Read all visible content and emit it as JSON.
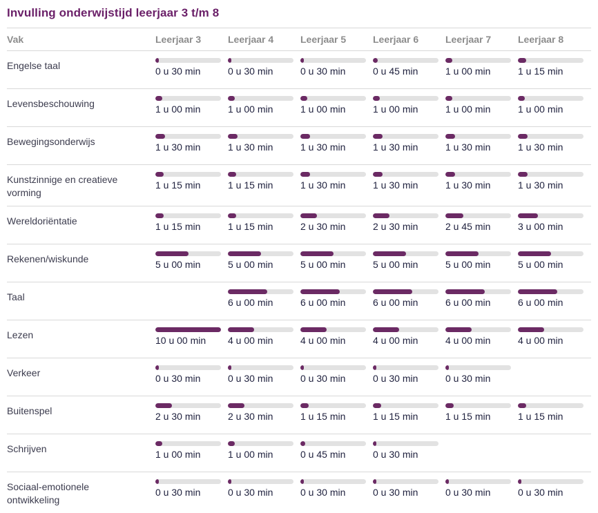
{
  "title": "Invulling onderwijstijd leerjaar 3 t/m 8",
  "colors": {
    "accent": "#6a1f68",
    "bar_fill": "#6b2a64",
    "bar_track": "#e2e2e2",
    "divider": "#d8d8d8",
    "header_text": "#8c8c8c",
    "vak_text": "#3c3c4e",
    "value_text": "#20223f"
  },
  "chart_data": {
    "type": "table",
    "title": "Invulling onderwijstijd leerjaar 3 t/m 8",
    "columns": [
      "Vak",
      "Leerjaar 3",
      "Leerjaar 4",
      "Leerjaar 5",
      "Leerjaar 6",
      "Leerjaar 7",
      "Leerjaar 8"
    ],
    "bar_scale_max_minutes": 600,
    "rows": [
      {
        "vak": "Engelse taal",
        "cells": [
          {
            "minutes": 30,
            "label": "0 u 30 min"
          },
          {
            "minutes": 30,
            "label": "0 u 30 min"
          },
          {
            "minutes": 30,
            "label": "0 u 30 min"
          },
          {
            "minutes": 45,
            "label": "0 u 45 min"
          },
          {
            "minutes": 60,
            "label": "1 u 00 min"
          },
          {
            "minutes": 75,
            "label": "1 u 15 min"
          }
        ]
      },
      {
        "vak": "Levensbeschouwing",
        "cells": [
          {
            "minutes": 60,
            "label": "1 u 00 min"
          },
          {
            "minutes": 60,
            "label": "1 u 00 min"
          },
          {
            "minutes": 60,
            "label": "1 u 00 min"
          },
          {
            "minutes": 60,
            "label": "1 u 00 min"
          },
          {
            "minutes": 60,
            "label": "1 u 00 min"
          },
          {
            "minutes": 60,
            "label": "1 u 00 min"
          }
        ]
      },
      {
        "vak": "Bewegingsonderwijs",
        "cells": [
          {
            "minutes": 90,
            "label": "1 u 30 min"
          },
          {
            "minutes": 90,
            "label": "1 u 30 min"
          },
          {
            "minutes": 90,
            "label": "1 u 30 min"
          },
          {
            "minutes": 90,
            "label": "1 u 30 min"
          },
          {
            "minutes": 90,
            "label": "1 u 30 min"
          },
          {
            "minutes": 90,
            "label": "1 u 30 min"
          }
        ]
      },
      {
        "vak": "Kunstzinnige en creatieve vorming",
        "cells": [
          {
            "minutes": 75,
            "label": "1 u 15 min"
          },
          {
            "minutes": 75,
            "label": "1 u 15 min"
          },
          {
            "minutes": 90,
            "label": "1 u 30 min"
          },
          {
            "minutes": 90,
            "label": "1 u 30 min"
          },
          {
            "minutes": 90,
            "label": "1 u 30 min"
          },
          {
            "minutes": 90,
            "label": "1 u 30 min"
          }
        ]
      },
      {
        "vak": "Wereldoriëntatie",
        "cells": [
          {
            "minutes": 75,
            "label": "1 u 15 min"
          },
          {
            "minutes": 75,
            "label": "1 u 15 min"
          },
          {
            "minutes": 150,
            "label": "2 u 30 min"
          },
          {
            "minutes": 150,
            "label": "2 u 30 min"
          },
          {
            "minutes": 165,
            "label": "2 u 45 min"
          },
          {
            "minutes": 180,
            "label": "3 u 00 min"
          }
        ]
      },
      {
        "vak": "Rekenen/wiskunde",
        "cells": [
          {
            "minutes": 300,
            "label": "5 u 00 min"
          },
          {
            "minutes": 300,
            "label": "5 u 00 min"
          },
          {
            "minutes": 300,
            "label": "5 u 00 min"
          },
          {
            "minutes": 300,
            "label": "5 u 00 min"
          },
          {
            "minutes": 300,
            "label": "5 u 00 min"
          },
          {
            "minutes": 300,
            "label": "5 u 00 min"
          }
        ]
      },
      {
        "vak": "Taal",
        "cells": [
          null,
          {
            "minutes": 360,
            "label": "6 u 00 min"
          },
          {
            "minutes": 360,
            "label": "6 u 00 min"
          },
          {
            "minutes": 360,
            "label": "6 u 00 min"
          },
          {
            "minutes": 360,
            "label": "6 u 00 min"
          },
          {
            "minutes": 360,
            "label": "6 u 00 min"
          }
        ]
      },
      {
        "vak": "Lezen",
        "cells": [
          {
            "minutes": 600,
            "label": "10 u 00 min"
          },
          {
            "minutes": 240,
            "label": "4 u 00 min"
          },
          {
            "minutes": 240,
            "label": "4 u 00 min"
          },
          {
            "minutes": 240,
            "label": "4 u 00 min"
          },
          {
            "minutes": 240,
            "label": "4 u 00 min"
          },
          {
            "minutes": 240,
            "label": "4 u 00 min"
          }
        ]
      },
      {
        "vak": "Verkeer",
        "cells": [
          {
            "minutes": 30,
            "label": "0 u 30 min"
          },
          {
            "minutes": 30,
            "label": "0 u 30 min"
          },
          {
            "minutes": 30,
            "label": "0 u 30 min"
          },
          {
            "minutes": 30,
            "label": "0 u 30 min"
          },
          {
            "minutes": 30,
            "label": "0 u 30 min"
          },
          null
        ]
      },
      {
        "vak": "Buitenspel",
        "cells": [
          {
            "minutes": 150,
            "label": "2 u 30 min"
          },
          {
            "minutes": 150,
            "label": "2 u 30 min"
          },
          {
            "minutes": 75,
            "label": "1 u 15 min"
          },
          {
            "minutes": 75,
            "label": "1 u 15 min"
          },
          {
            "minutes": 75,
            "label": "1 u 15 min"
          },
          {
            "minutes": 75,
            "label": "1 u 15 min"
          }
        ]
      },
      {
        "vak": "Schrijven",
        "cells": [
          {
            "minutes": 60,
            "label": "1 u 00 min"
          },
          {
            "minutes": 60,
            "label": "1 u 00 min"
          },
          {
            "minutes": 45,
            "label": "0 u 45 min"
          },
          {
            "minutes": 30,
            "label": "0 u 30 min"
          },
          null,
          null
        ]
      },
      {
        "vak": "Sociaal-emotionele ontwikkeling",
        "cells": [
          {
            "minutes": 30,
            "label": "0 u 30 min"
          },
          {
            "minutes": 30,
            "label": "0 u 30 min"
          },
          {
            "minutes": 30,
            "label": "0 u 30 min"
          },
          {
            "minutes": 30,
            "label": "0 u 30 min"
          },
          {
            "minutes": 30,
            "label": "0 u 30 min"
          },
          {
            "minutes": 30,
            "label": "0 u 30 min"
          }
        ]
      }
    ]
  }
}
